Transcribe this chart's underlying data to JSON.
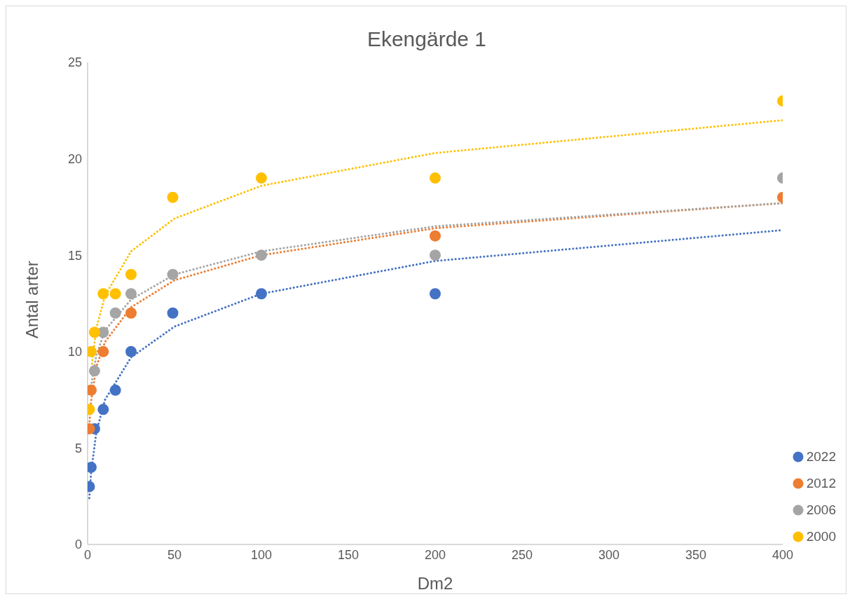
{
  "chart_data": {
    "type": "scatter",
    "title": "Ekengärde 1",
    "xlabel": "Dm2",
    "ylabel": "Antal arter",
    "x": [
      1,
      2,
      4,
      9,
      16,
      25,
      49,
      100,
      200,
      400
    ],
    "xlim": [
      0,
      400
    ],
    "xticks": [
      0,
      50,
      100,
      150,
      200,
      250,
      300,
      350,
      400
    ],
    "ylim": [
      0,
      25
    ],
    "yticks": [
      0,
      5,
      10,
      15,
      20,
      25
    ],
    "grid": false,
    "legend": "bottom right",
    "marker": "circle",
    "series": [
      {
        "name": "2022",
        "color": "#4472c4",
        "values": [
          3,
          4,
          6,
          7,
          8,
          10,
          12,
          13,
          13,
          null
        ]
      },
      {
        "name": "2012",
        "color": "#ed7d31",
        "values": [
          6,
          8,
          null,
          10,
          null,
          12,
          null,
          null,
          16,
          18
        ]
      },
      {
        "name": "2006",
        "color": "#a5a5a5",
        "values": [
          null,
          null,
          9,
          11,
          12,
          13,
          14,
          15,
          15,
          19
        ]
      },
      {
        "name": "2000",
        "color": "#ffc000",
        "values": [
          7,
          10,
          11,
          13,
          13,
          14,
          18,
          19,
          19,
          23
        ]
      },
      {
        "type": "line",
        "line_style": "dotted",
        "marker": "none",
        "color": "#4472c4",
        "x": [
          1,
          2,
          5,
          10,
          25,
          50,
          100,
          200,
          400
        ],
        "values": [
          2.4,
          3.7,
          5.8,
          7.5,
          9.7,
          11.3,
          13.0,
          14.7,
          16.3
        ]
      },
      {
        "type": "line",
        "line_style": "dotted",
        "marker": "none",
        "color": "#ed7d31",
        "x": [
          1,
          2,
          5,
          10,
          25,
          50,
          100,
          200,
          400
        ],
        "values": [
          6.2,
          7.4,
          9.2,
          10.5,
          12.3,
          13.7,
          15.0,
          16.4,
          17.7
        ]
      },
      {
        "type": "line",
        "line_style": "dotted",
        "marker": "none",
        "color": "#a5a5a5",
        "x": [
          2,
          5,
          10,
          25,
          50,
          100,
          200,
          400
        ],
        "values": [
          8.2,
          9.8,
          11.1,
          12.7,
          14.0,
          15.2,
          16.5,
          17.7
        ]
      },
      {
        "type": "line",
        "line_style": "dotted",
        "marker": "none",
        "color": "#ffc000",
        "x": [
          2,
          5,
          10,
          25,
          50,
          100,
          200,
          400
        ],
        "values": [
          9.0,
          11.2,
          12.9,
          15.2,
          16.9,
          18.6,
          20.3,
          22.0
        ]
      }
    ]
  }
}
